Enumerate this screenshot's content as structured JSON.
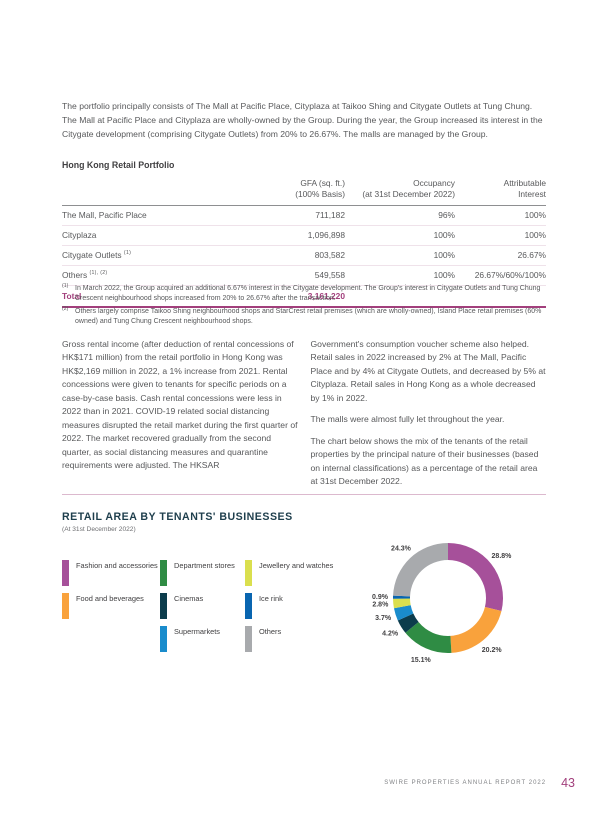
{
  "intro": "The portfolio principally consists of The Mall at Pacific Place, Cityplaza at Taikoo Shing and Citygate Outlets at Tung Chung. The Mall at Pacific Place and Cityplaza are wholly-owned by the Group. During the year, the Group increased its interest in the Citygate development (comprising Citygate Outlets) from 20% to 26.67%. The malls are managed by the Group.",
  "portfolio_table": {
    "title": "Hong Kong Retail Portfolio",
    "col_headers": [
      [
        "GFA (sq. ft.)",
        "(100% Basis)"
      ],
      [
        "Occupancy",
        "(at 31st December 2022)"
      ],
      [
        "Attributable",
        "Interest"
      ]
    ],
    "rows": [
      {
        "label": "The Mall, Pacific Place",
        "sup": "",
        "gfa": "711,182",
        "occupancy": "96%",
        "interest": "100%"
      },
      {
        "label": "Cityplaza",
        "sup": "",
        "gfa": "1,096,898",
        "occupancy": "100%",
        "interest": "100%"
      },
      {
        "label": "Citygate Outlets",
        "sup": "(1)",
        "gfa": "803,582",
        "occupancy": "100%",
        "interest": "26.67%"
      },
      {
        "label": "Others",
        "sup": "(1), (2)",
        "gfa": "549,558",
        "occupancy": "100%",
        "interest": "26.67%/60%/100%"
      }
    ],
    "total": {
      "label": "Total",
      "gfa": "3,161,220"
    }
  },
  "footnotes": [
    {
      "marker": "(1)",
      "text": "In March 2022, the Group acquired an additional 6.67% interest in the Citygate development. The Group's interest in Citygate Outlets and Tung Chung Crescent neighbourhood shops increased from 20% to 26.67% after the transaction."
    },
    {
      "marker": "(2)",
      "text": "Others largely comprise Taikoo Shing neighbourhood shops and StarCrest retail premises (which are wholly-owned), Island Place retail premises (60% owned) and Tung Chung Crescent neighbourhood shops."
    }
  ],
  "body": {
    "left": "Gross rental income (after deduction of rental concessions of HK$171 million) from the retail portfolio in Hong Kong was HK$2,169 million in 2022, a 1% increase from 2021. Rental concessions were given to tenants for specific periods on a case-by-case basis. Cash rental concessions were less in 2022 than in 2021. COVID-19 related social distancing measures disrupted the retail market during the first quarter of 2022. The market recovered gradually from the second quarter, as social distancing measures and quarantine requirements were adjusted. The HKSAR",
    "right_p1": "Government's consumption voucher scheme also helped. Retail sales in 2022 increased by 2% at The Mall, Pacific Place and by 4% at Citygate Outlets, and decreased by 5% at Cityplaza. Retail sales in Hong Kong as a whole decreased by 1% in 2022.",
    "right_p2": "The malls were almost fully let throughout the year.",
    "right_p3": "The chart below shows the mix of the tenants of the retail properties by the principal nature of their businesses (based on internal classifications) as a percentage of the retail area at 31st December 2022."
  },
  "chart_data": {
    "type": "pie",
    "donut": true,
    "title": "RETAIL AREA BY TENANTS' BUSINESSES",
    "subtitle": "(At 31st December 2022)",
    "legend_position": "left",
    "legend_groups": [
      2,
      3,
      3
    ],
    "segments": [
      {
        "label": "Fashion and accessories",
        "value": 28.8,
        "color": "#A6509A"
      },
      {
        "label": "Food and beverages",
        "value": 20.2,
        "color": "#F9A23C"
      },
      {
        "label": "Department stores",
        "value": 15.1,
        "color": "#2F8C44"
      },
      {
        "label": "Cinemas",
        "value": 4.2,
        "color": "#0C3C4C"
      },
      {
        "label": "Supermarkets",
        "value": 3.7,
        "color": "#1A8CCC"
      },
      {
        "label": "Jewellery and watches",
        "value": 2.8,
        "color": "#DADF4E"
      },
      {
        "label": "Ice rink",
        "value": 0.9,
        "color": "#0965B0"
      },
      {
        "label": "Others",
        "value": 24.3,
        "color": "#A8AAAD"
      }
    ]
  },
  "footer": {
    "text": "SWIRE PROPERTIES ANNUAL REPORT 2022",
    "page_number": "43"
  },
  "colors": {
    "accent_magenta": "#A23F7C",
    "chart_heading": "#1E3E4C",
    "body_text": "#58595B",
    "divider_pink": "#DCB9CE"
  }
}
